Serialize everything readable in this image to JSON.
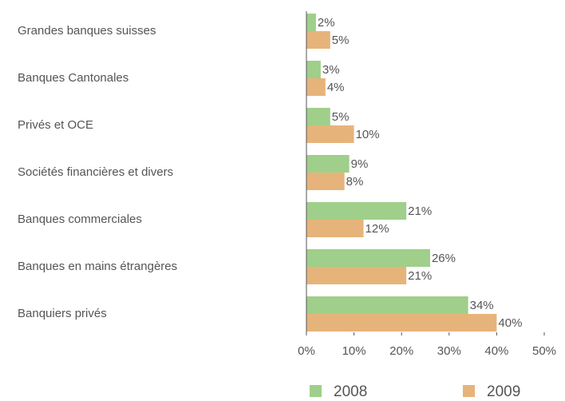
{
  "chart_data": {
    "type": "bar",
    "categories": [
      "Grandes banques suisses",
      "Banques Cantonales",
      "Privés et OCE",
      "Sociétés financières et divers",
      "Banques commerciales",
      "Banques en mains étrangères",
      "Banquiers privés"
    ],
    "series": [
      {
        "name": "2008",
        "color": "#9fcf8a",
        "values": [
          2,
          3,
          5,
          9,
          21,
          26,
          34
        ],
        "value_labels": [
          "2%",
          "3%",
          "5%",
          "9%",
          "21%",
          "26%",
          "34%"
        ]
      },
      {
        "name": "2009",
        "color": "#e6b47a",
        "values": [
          5,
          4,
          10,
          8,
          12,
          21,
          40
        ],
        "value_labels": [
          "5%",
          "4%",
          "10%",
          "8%",
          "12%",
          "21%",
          "40%"
        ]
      }
    ],
    "xlim": [
      0,
      50
    ],
    "xticks": [
      {
        "value": 0,
        "label": "0%"
      },
      {
        "value": 10,
        "label": "10%"
      },
      {
        "value": 20,
        "label": "20%"
      },
      {
        "value": 30,
        "label": "30%"
      },
      {
        "value": 40,
        "label": "40%"
      },
      {
        "value": 50,
        "label": "50%"
      }
    ],
    "legend": "bottom"
  }
}
